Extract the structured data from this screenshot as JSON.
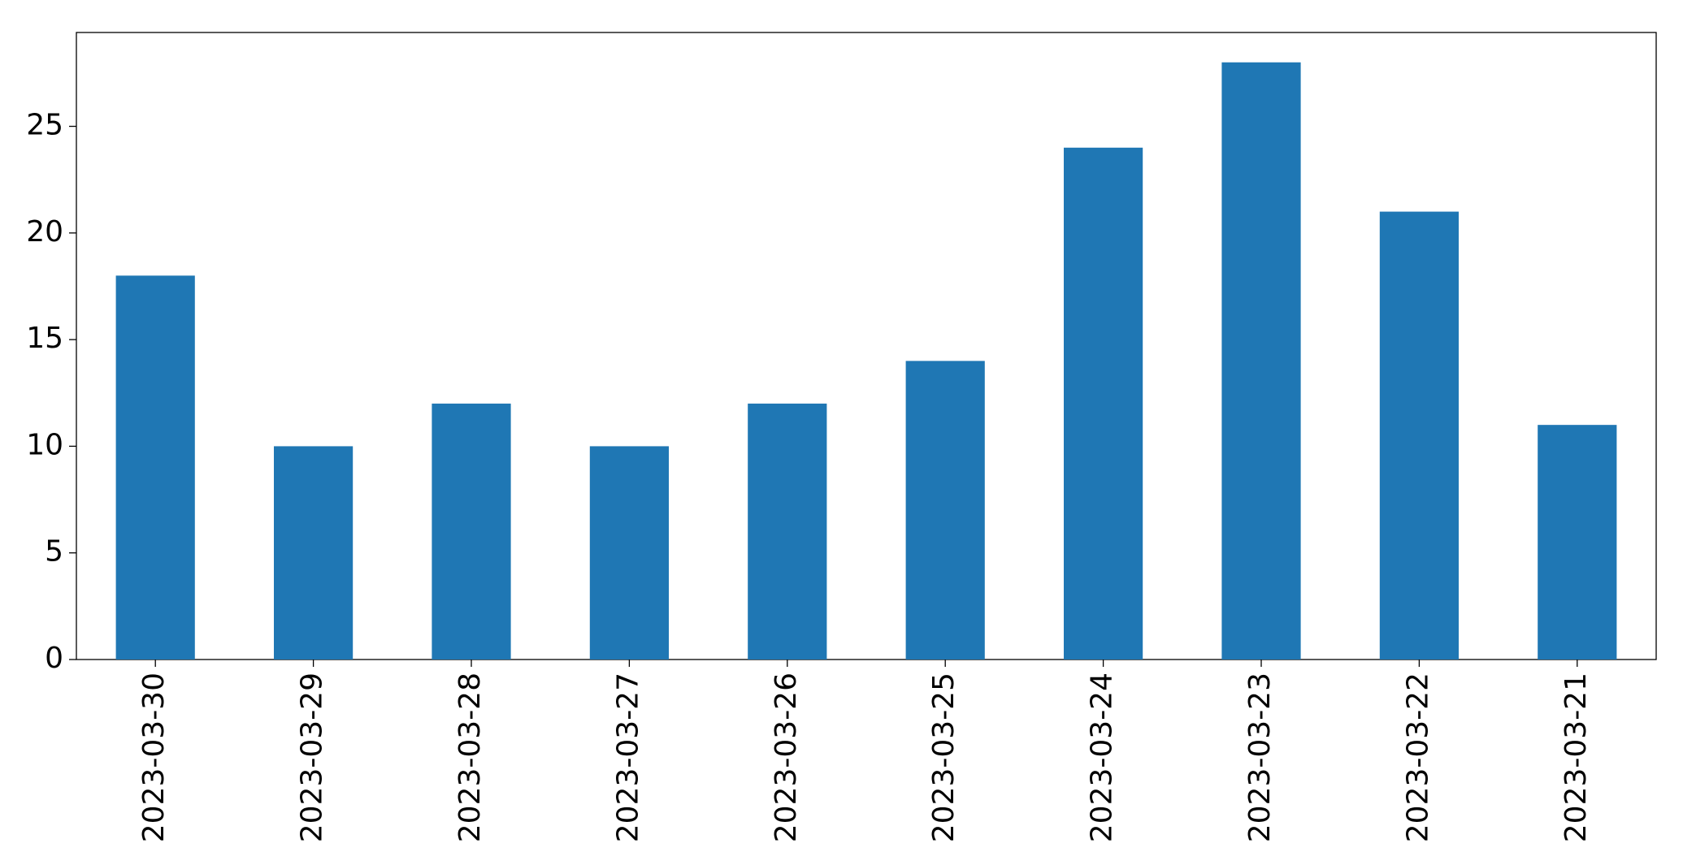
{
  "chart_data": {
    "type": "bar",
    "categories": [
      "2023-03-30",
      "2023-03-29",
      "2023-03-28",
      "2023-03-27",
      "2023-03-26",
      "2023-03-25",
      "2023-03-24",
      "2023-03-23",
      "2023-03-22",
      "2023-03-21"
    ],
    "values": [
      18,
      10,
      12,
      10,
      12,
      14,
      24,
      28,
      21,
      11
    ],
    "color": "#1f77b4",
    "ylim": [
      0,
      29.4
    ],
    "yticks": [
      0,
      5,
      10,
      15,
      20,
      25
    ],
    "grid": false
  }
}
